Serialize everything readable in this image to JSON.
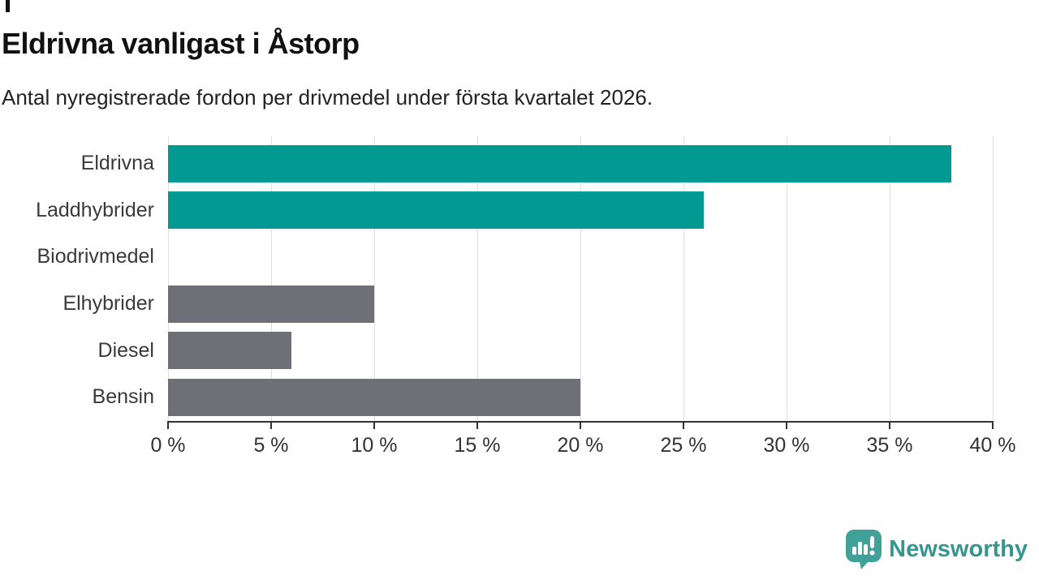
{
  "page": {
    "background": "#ffffff"
  },
  "chart_data": {
    "type": "bar",
    "orientation": "horizontal",
    "title": "Eldrivna vanligast i Åstorp",
    "subtitle": "Antal nyregistrerade fordon per drivmedel under första kvartalet 2026.",
    "categories": [
      "Eldrivna",
      "Laddhybrider",
      "Biodrivmedel",
      "Elhybrider",
      "Diesel",
      "Bensin"
    ],
    "values": [
      38,
      26,
      0,
      10,
      6,
      20
    ],
    "unit": "%",
    "xlabel": "",
    "ylabel": "",
    "xlim": [
      0,
      40
    ],
    "x_ticks": [
      "0 %",
      "5 %",
      "10 %",
      "15 %",
      "20 %",
      "25 %",
      "30 %",
      "35 %",
      "40 %"
    ],
    "x_tick_values": [
      0,
      5,
      10,
      15,
      20,
      25,
      30,
      35,
      40
    ],
    "grid": true,
    "legend_position": "none",
    "bar_colors": [
      "#009a93",
      "#009a93",
      "#6f6f78",
      "#6f6f78",
      "#6f6f78",
      "#6f6f78"
    ],
    "highlight_color": "#009a93",
    "default_color": "#6f6f78"
  },
  "footer": {
    "brand": "Newsworthy",
    "logo_icon": "newsworthy-speech-bubble-chart-icon",
    "brand_color": "#35968e",
    "logo_color": "#41a098"
  },
  "colors": {
    "axis": "#333333",
    "grid": "#dedede",
    "title_text": "#111111",
    "subtitle_text": "#222222",
    "label_text": "#3a3a3a"
  }
}
